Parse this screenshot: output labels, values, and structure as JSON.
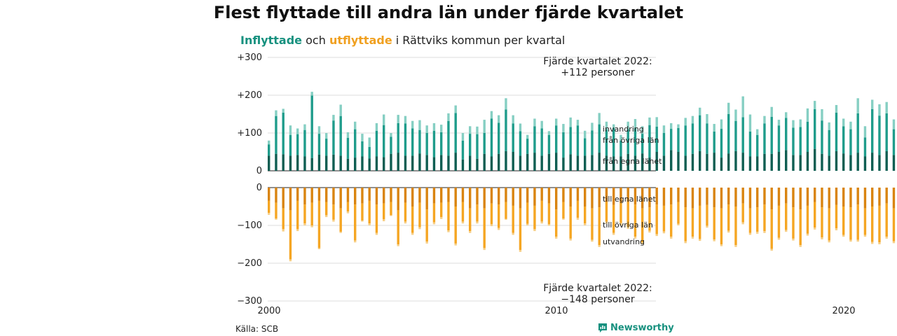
{
  "title": "Flest flyttade till andra län under fjärde kvartalet",
  "subtitle": {
    "part1": "Inflyttade",
    "part2": " och ",
    "part3": "utflyttade",
    "part4": " i Rättviks kommun per kvartal"
  },
  "source": "Källa: SCB",
  "brand": "Newsworthy",
  "colors": {
    "in_own": "#0f5e52",
    "in_other": "#1f9c8b",
    "in_immig": "#86cfc3",
    "out_own": "#d98410",
    "out_other": "#f5a623",
    "out_emig": "#f7cf86",
    "grid": "#dcdcdc",
    "brand": "#17917f"
  },
  "annotations": {
    "top_line1": "Fjärde kvartalet 2022:",
    "top_line2": "+112 personer",
    "bottom_line1": "Fjärde kvartalet 2022:",
    "bottom_line2": "−148 personer"
  },
  "chart_data": {
    "type": "bar",
    "stacked": true,
    "x_start": 2000,
    "quarters_per_year": 4,
    "xticks": [
      "2000",
      "2010",
      "2020"
    ],
    "inflow": {
      "ylim": [
        0,
        300
      ],
      "yticks": [
        "0",
        "+100",
        "+200",
        "+300"
      ],
      "series": [
        {
          "name": "från egna länet",
          "values": [
            40,
            45,
            44,
            40,
            42,
            38,
            34,
            43,
            40,
            43,
            40,
            32,
            35,
            38,
            33,
            38,
            36,
            45,
            48,
            40,
            40,
            46,
            42,
            36,
            42,
            40,
            48,
            30,
            40,
            32,
            45,
            38,
            45,
            52,
            50,
            40,
            45,
            48,
            40,
            45,
            48,
            35,
            44,
            40,
            40,
            42,
            48,
            40,
            38,
            38,
            45,
            40,
            46,
            35,
            50,
            40,
            55,
            50,
            40,
            45,
            52,
            45,
            48,
            35,
            46,
            52,
            48,
            38,
            38,
            45,
            45,
            50,
            55,
            42,
            42,
            50,
            58,
            45,
            40,
            52,
            46,
            42,
            48,
            38,
            48,
            42,
            52,
            42,
            40,
            48,
            40,
            38,
            42,
            40,
            40,
            42
          ]
        },
        {
          "name": "från övriga län",
          "values": [
            30,
            100,
            110,
            55,
            55,
            70,
            165,
            55,
            45,
            90,
            105,
            55,
            75,
            40,
            30,
            68,
            85,
            45,
            78,
            85,
            72,
            62,
            58,
            70,
            60,
            92,
            105,
            50,
            58,
            65,
            55,
            100,
            82,
            110,
            75,
            65,
            40,
            70,
            72,
            50,
            72,
            67,
            72,
            80,
            46,
            65,
            75,
            70,
            75,
            42,
            65,
            72,
            52,
            86,
            67,
            60,
            56,
            63,
            80,
            80,
            95,
            80,
            56,
            76,
            104,
            80,
            94,
            66,
            57,
            80,
            98,
            70,
            85,
            72,
            74,
            80,
            105,
            88,
            68,
            102,
            72,
            68,
            104,
            50,
            115,
            104,
            100,
            68,
            92,
            60,
            76,
            72,
            112,
            110,
            90,
            40
          ]
        },
        {
          "name": "invandring",
          "values": [
            10,
            15,
            10,
            25,
            15,
            15,
            10,
            20,
            15,
            15,
            30,
            15,
            20,
            20,
            25,
            20,
            28,
            10,
            22,
            20,
            20,
            26,
            20,
            20,
            20,
            20,
            20,
            20,
            20,
            20,
            35,
            20,
            20,
            30,
            22,
            20,
            10,
            20,
            20,
            10,
            18,
            22,
            25,
            15,
            20,
            20,
            30,
            20,
            10,
            15,
            20,
            25,
            20,
            20,
            25,
            20,
            15,
            10,
            20,
            20,
            20,
            25,
            20,
            25,
            30,
            30,
            55,
            45,
            15,
            20,
            26,
            15,
            15,
            20,
            20,
            35,
            22,
            30,
            20,
            20,
            20,
            20,
            40,
            30,
            25,
            30,
            30,
            26,
            22,
            20,
            34,
            30,
            36,
            20,
            18,
            30
          ]
        }
      ]
    },
    "outflow": {
      "ylim": [
        -300,
        0
      ],
      "yticks": [
        "0",
        "−100",
        "−200",
        "−300"
      ],
      "series": [
        {
          "name": "till egna länet",
          "values": [
            -35,
            -40,
            -55,
            -60,
            -35,
            -45,
            -40,
            -35,
            -38,
            -45,
            -55,
            -38,
            -45,
            -42,
            -35,
            -45,
            -42,
            -38,
            -60,
            -40,
            -50,
            -40,
            -58,
            -42,
            -40,
            -38,
            -50,
            -38,
            -55,
            -45,
            -55,
            -42,
            -45,
            -38,
            -48,
            -55,
            -40,
            -48,
            -35,
            -42,
            -58,
            -38,
            -50,
            -35,
            -50,
            -55,
            -52,
            -38,
            -46,
            -40,
            -38,
            -45,
            -55,
            -52,
            -45,
            -48,
            -45,
            -38,
            -52,
            -55,
            -48,
            -46,
            -52,
            -55,
            -45,
            -50,
            -42,
            -55,
            -52,
            -45,
            -58,
            -48,
            -42,
            -52,
            -58,
            -48,
            -38,
            -52,
            -55,
            -46,
            -50,
            -52,
            -45,
            -55,
            -50,
            -48,
            -42,
            -55,
            -48,
            -38,
            -45,
            -55,
            -52,
            -35,
            -55,
            -50
          ]
        },
        {
          "name": "till övriga län",
          "values": [
            -32,
            -42,
            -55,
            -130,
            -75,
            -50,
            -60,
            -125,
            -35,
            -40,
            -62,
            -25,
            -95,
            -45,
            -60,
            -75,
            -42,
            -35,
            -90,
            -50,
            -70,
            -65,
            -85,
            -50,
            -38,
            -75,
            -98,
            -52,
            -60,
            -45,
            -105,
            -55,
            -62,
            -45,
            -72,
            -110,
            -56,
            -62,
            -55,
            -55,
            -72,
            -44,
            -85,
            -45,
            -45,
            -83,
            -100,
            -52,
            -74,
            -54,
            -66,
            -85,
            -90,
            -62,
            -78,
            -68,
            -85,
            -58,
            -90,
            -75,
            -88,
            -55,
            -85,
            -95,
            -69,
            -102,
            -50,
            -65,
            -65,
            -70,
            -104,
            -85,
            -70,
            -83,
            -94,
            -74,
            -68,
            -80,
            -85,
            -62,
            -75,
            -86,
            -93,
            -70,
            -94,
            -97,
            -88,
            -87,
            -92,
            -57,
            -74,
            -92,
            -88,
            -65,
            -94,
            -90
          ]
        },
        {
          "name": "utvandring",
          "values": [
            -5,
            -3,
            -6,
            -5,
            -5,
            -5,
            -5,
            -3,
            -5,
            -5,
            -3,
            -5,
            -5,
            -3,
            -5,
            -5,
            -5,
            -2,
            -5,
            -5,
            -5,
            -5,
            -5,
            -5,
            -5,
            -5,
            -5,
            -5,
            -5,
            -5,
            -5,
            -5,
            -5,
            -2,
            -5,
            -5,
            -4,
            -5,
            -5,
            -4,
            -5,
            -3,
            -5,
            -5,
            -5,
            -5,
            -5,
            -5,
            -5,
            -6,
            -5,
            -5,
            -5,
            -5,
            -5,
            -5,
            -5,
            -4,
            -5,
            -5,
            -5,
            -5,
            -5,
            -5,
            -5,
            -5,
            -5,
            -5,
            -5,
            -5,
            -5,
            -5,
            -5,
            -5,
            -5,
            -5,
            -5,
            -5,
            -5,
            -5,
            -5,
            -5,
            -5,
            -5,
            -5,
            -5,
            -5,
            -5,
            -5,
            -5,
            -5,
            -5,
            -5,
            -5,
            -5,
            -8
          ]
        }
      ]
    },
    "legend": {
      "in": [
        "invandring",
        "från övriga län",
        "från egna länet"
      ],
      "out": [
        "till egna länet",
        "till övriga län",
        "utvandring"
      ]
    }
  }
}
